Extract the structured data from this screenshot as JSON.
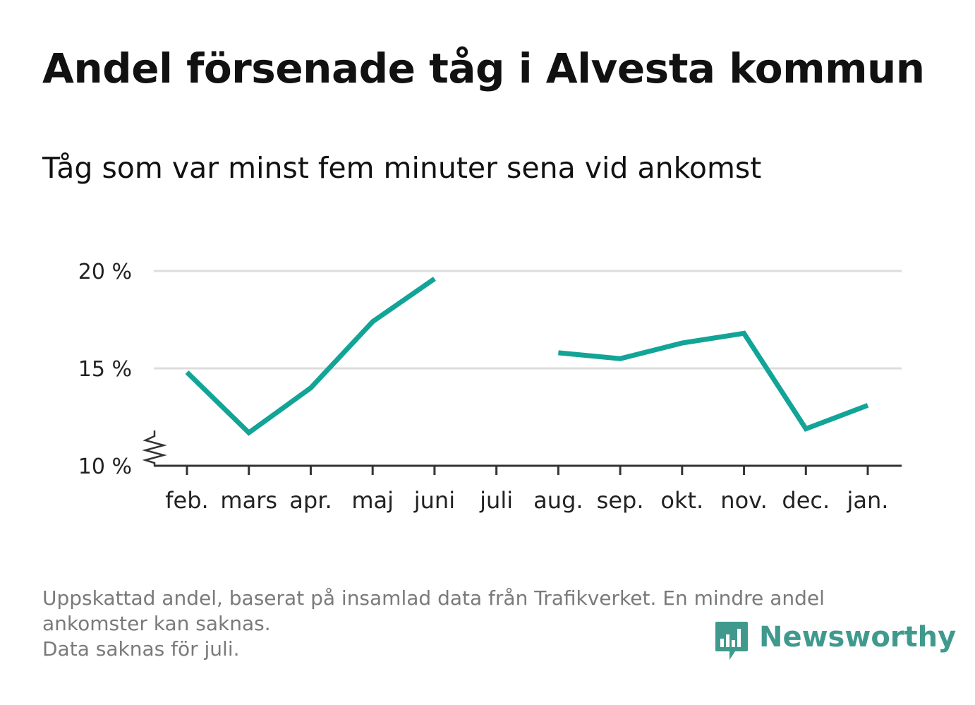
{
  "header": {
    "title": "Andel försenade tåg i Alvesta kommun",
    "subtitle": "Tåg som var minst fem minuter sena vid ankomst"
  },
  "footer": {
    "note_line_1": "Uppskattad andel, baserat på insamlad data från Trafikverket. En mindre andel",
    "note_line_2": "ankomster kan saknas.",
    "note_line_3": "Data saknas för juli.",
    "brand": "Newsworthy"
  },
  "colors": {
    "line": "#12a496",
    "grid": "#dddddd",
    "axis": "#333333",
    "brand": "#3f9a8d",
    "footnote": "#7a7a7a"
  },
  "chart_data": {
    "type": "line",
    "categories": [
      "feb.",
      "mars",
      "apr.",
      "maj",
      "juni",
      "juli",
      "aug.",
      "sep.",
      "okt.",
      "nov.",
      "dec.",
      "jan."
    ],
    "series": [
      {
        "name": "",
        "values": [
          14.8,
          11.7,
          14.0,
          17.4,
          19.6,
          null,
          15.8,
          15.5,
          16.3,
          16.8,
          11.9,
          13.1
        ]
      }
    ],
    "y_ticks": [
      10,
      15,
      20
    ],
    "y_tick_labels": [
      "10 %",
      "15 %",
      "20 %"
    ],
    "ylim": [
      10,
      20
    ],
    "y_axis_break": true,
    "grid": true,
    "legend": "none",
    "xlabel": "",
    "ylabel": ""
  }
}
